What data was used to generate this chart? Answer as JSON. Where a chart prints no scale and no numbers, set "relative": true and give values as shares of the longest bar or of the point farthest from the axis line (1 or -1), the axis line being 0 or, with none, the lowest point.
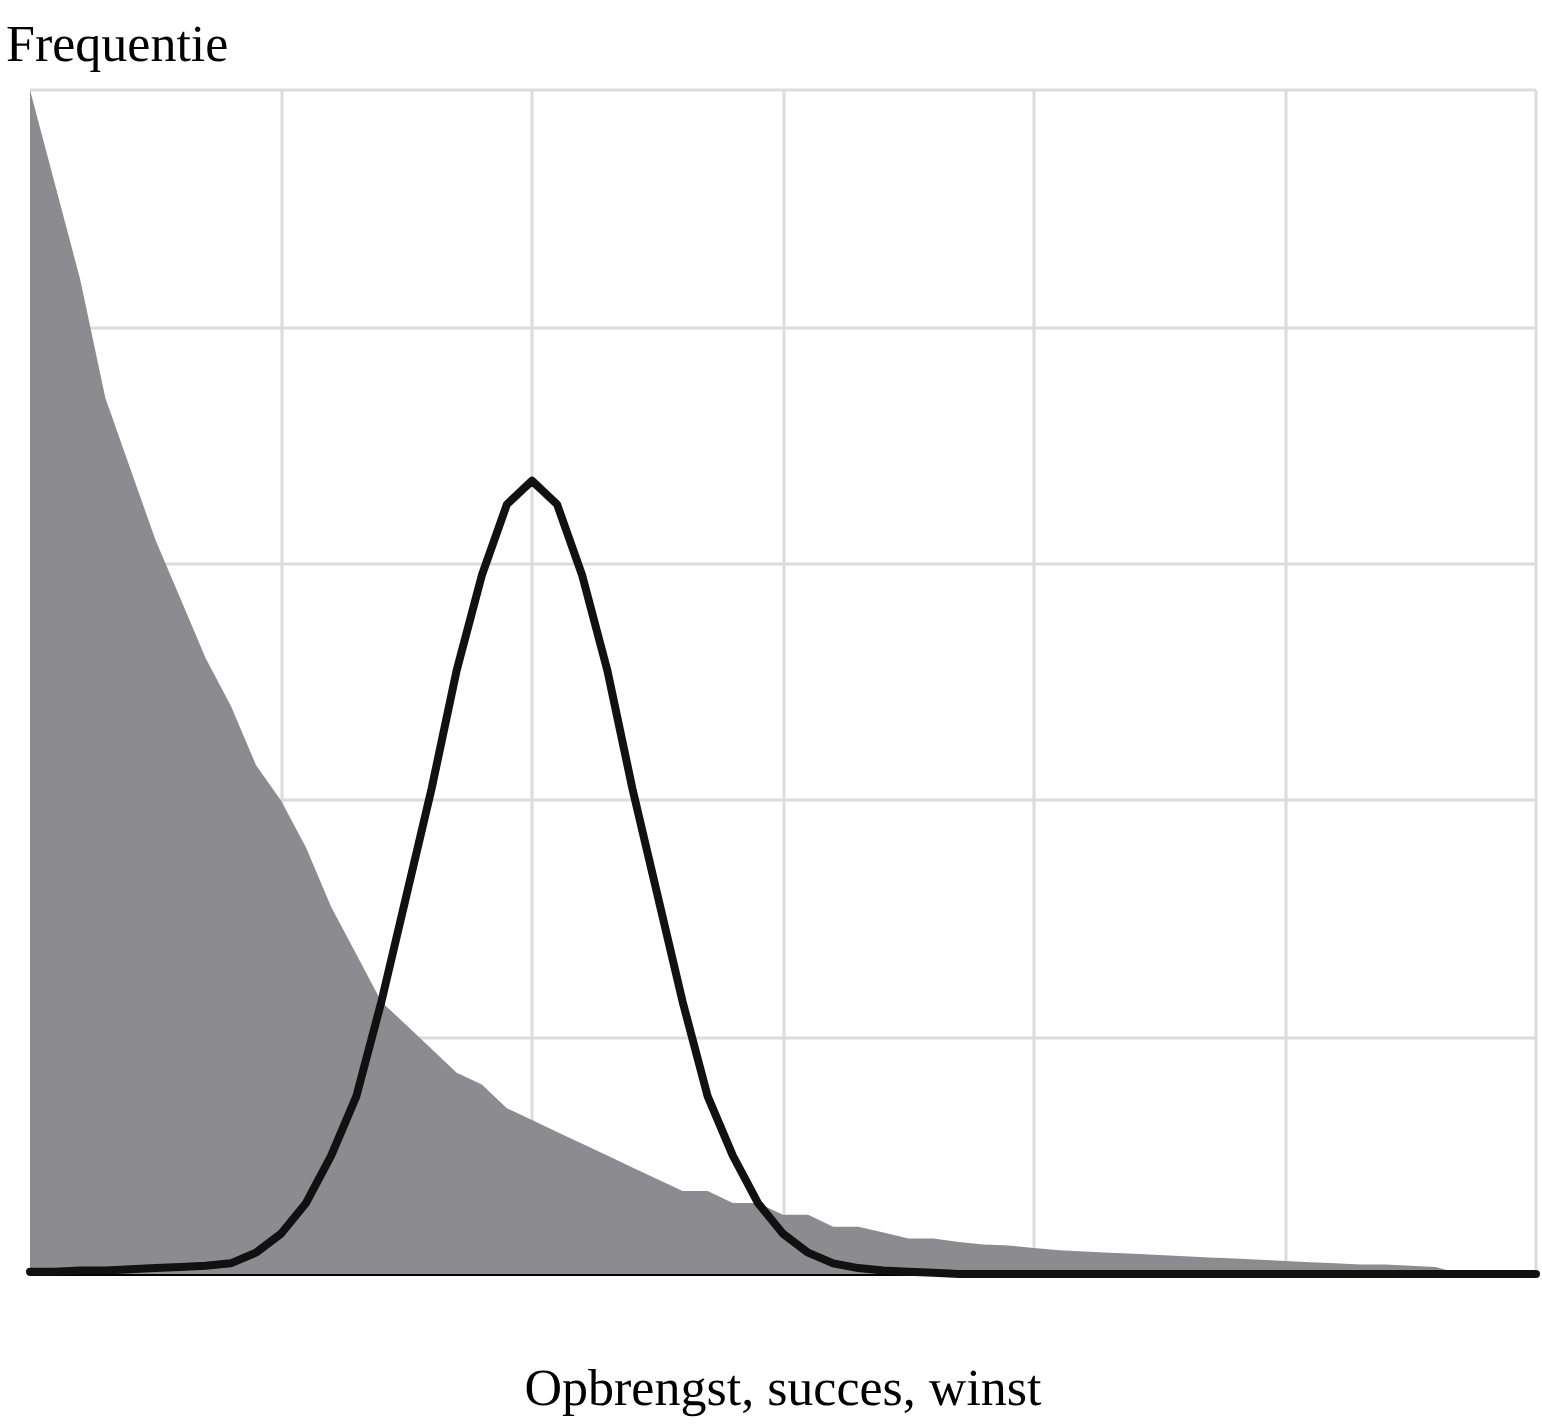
{
  "chart_data": {
    "type": "area",
    "relative": true,
    "xlabel": "Opbrengst, succes, winst",
    "ylabel": "Frequentie",
    "grid": true,
    "marker": "none",
    "line_style": "solid",
    "categories": [
      null,
      null,
      null,
      null,
      null,
      null,
      null,
      null,
      null,
      null,
      null,
      null,
      null,
      null,
      null,
      null,
      null,
      null,
      null,
      null,
      null,
      null,
      null,
      null,
      null,
      null,
      null,
      null,
      null,
      null,
      null,
      null,
      null,
      null,
      null,
      null,
      null,
      null,
      null,
      null,
      null,
      null,
      null,
      null,
      null,
      null,
      null,
      null,
      null,
      null,
      null,
      null,
      null,
      null,
      null,
      null,
      null,
      null,
      null,
      null,
      null
    ],
    "series": [
      {
        "color": "#8c8c90",
        "values": [
          1.0,
          0.92,
          0.84,
          0.74,
          0.68,
          0.62,
          0.57,
          0.52,
          0.48,
          0.43,
          0.4,
          0.36,
          0.31,
          0.27,
          0.23,
          0.21,
          0.19,
          0.17,
          0.16,
          0.14,
          0.13,
          0.12,
          0.11,
          0.1,
          0.09,
          0.08,
          0.07,
          0.07,
          0.06,
          0.06,
          0.05,
          0.05,
          0.04,
          0.04,
          0.035,
          0.03,
          0.03,
          0.027,
          0.025,
          0.024,
          0.022,
          0.02,
          0.019,
          0.018,
          0.017,
          0.016,
          0.015,
          0.014,
          0.013,
          0.012,
          0.011,
          0.01,
          0.009,
          0.008,
          0.008,
          0.007,
          0.006,
          0,
          0,
          0,
          0
        ]
      },
      {
        "type": "line",
        "color": "#111111",
        "values": [
          0.002,
          0.002,
          0.003,
          0.003,
          0.004,
          0.005,
          0.006,
          0.007,
          0.009,
          0.018,
          0.034,
          0.06,
          0.1,
          0.15,
          0.23,
          0.32,
          0.41,
          0.51,
          0.59,
          0.65,
          0.67,
          0.65,
          0.59,
          0.51,
          0.41,
          0.32,
          0.23,
          0.15,
          0.1,
          0.06,
          0.034,
          0.018,
          0.009,
          0.005,
          0.003,
          0.002,
          0.001,
          0,
          0,
          0,
          0,
          0,
          0,
          0,
          0,
          0,
          0,
          0,
          0,
          0,
          0,
          0,
          0,
          0,
          0,
          0,
          0,
          0,
          0,
          0,
          0
        ]
      }
    ]
  }
}
